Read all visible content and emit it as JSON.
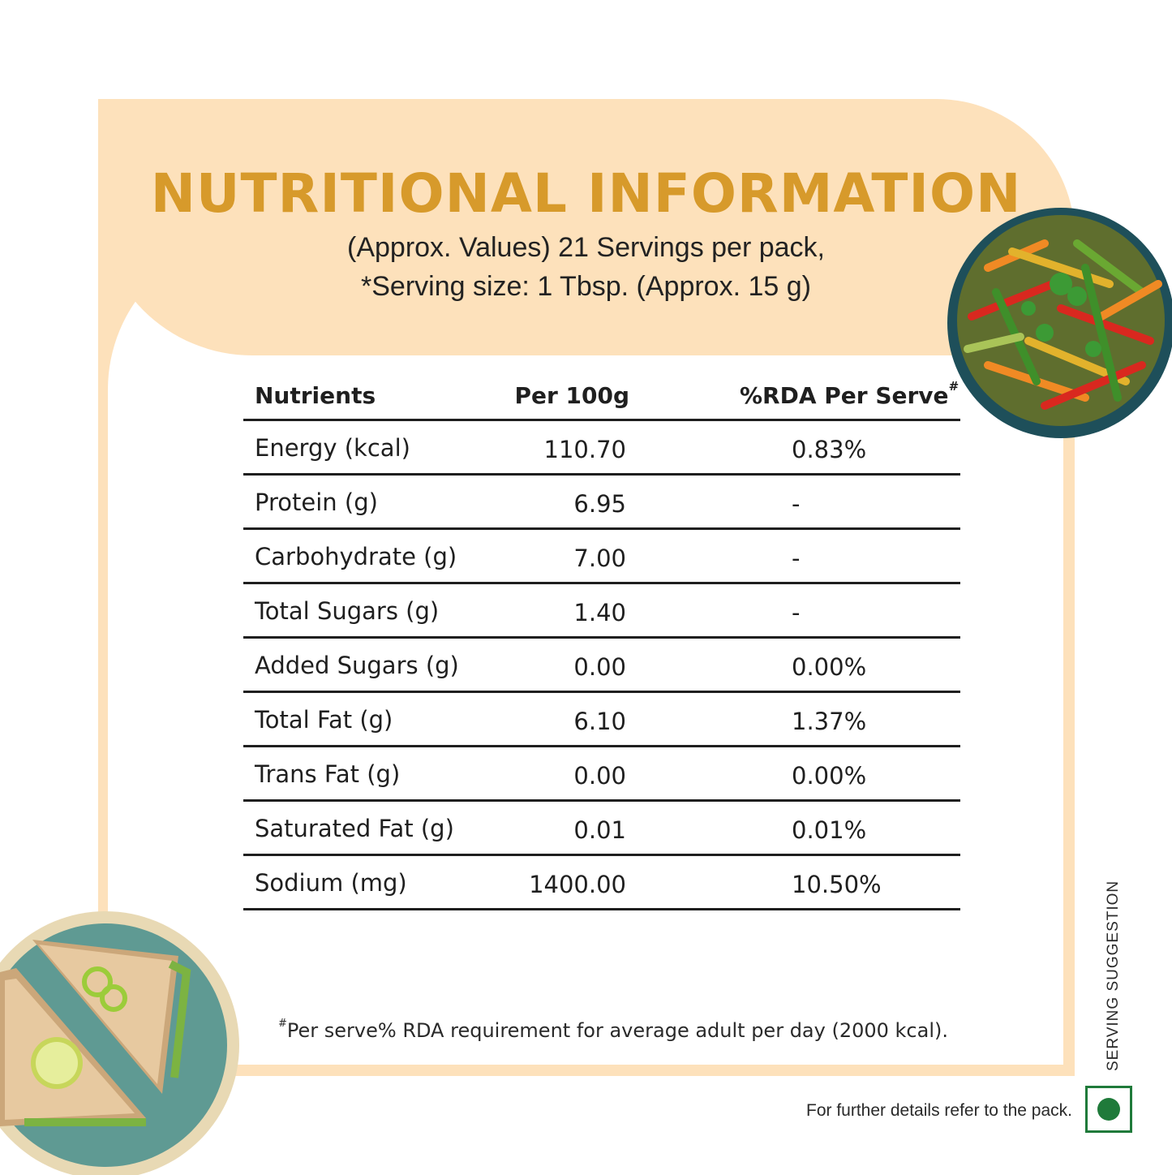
{
  "title": "NUTRITIONAL INFORMATION",
  "subtitle_line1": "(Approx. Values) 21 Servings per pack,",
  "subtitle_line2": "*Serving size: 1 Tbsp. (Approx. 15 g)",
  "table": {
    "headers": {
      "nutrients": "Nutrients",
      "per100g": "Per 100g",
      "rda": "%RDA Per Serve",
      "rda_mark": "#"
    },
    "rows": [
      {
        "name": "Energy (kcal)",
        "per100g": "110.70",
        "rda": "0.83%"
      },
      {
        "name": "Protein (g)",
        "per100g": "6.95",
        "rda": "-"
      },
      {
        "name": "Carbohydrate (g)",
        "per100g": "7.00",
        "rda": "-"
      },
      {
        "name": "Total Sugars (g)",
        "per100g": "1.40",
        "rda": "-"
      },
      {
        "name": "Added Sugars (g)",
        "per100g": "0.00",
        "rda": "0.00%"
      },
      {
        "name": "Total Fat (g)",
        "per100g": "6.10",
        "rda": "1.37%"
      },
      {
        "name": "Trans Fat (g)",
        "per100g": "0.00",
        "rda": "0.00%"
      },
      {
        "name": "Saturated Fat (g)",
        "per100g": "0.01",
        "rda": "0.01%"
      },
      {
        "name": "Sodium (mg)",
        "per100g": "1400.00",
        "rda": "10.50%"
      }
    ]
  },
  "footnote_mark": "#",
  "footnote": "Per serve% RDA requirement for average adult per day (2000 kcal).",
  "refer_text": "For further details refer to the pack.",
  "serving_suggestion": "SERVING SUGGESTION",
  "colors": {
    "accent": "#d79a2b",
    "panel": "#fde1bb",
    "veg_green": "#1f7a3a"
  },
  "icons": {
    "bowl": "vegetable-salad-bowl-image",
    "plate": "sandwich-plate-image",
    "veg": "veg-symbol-icon"
  }
}
